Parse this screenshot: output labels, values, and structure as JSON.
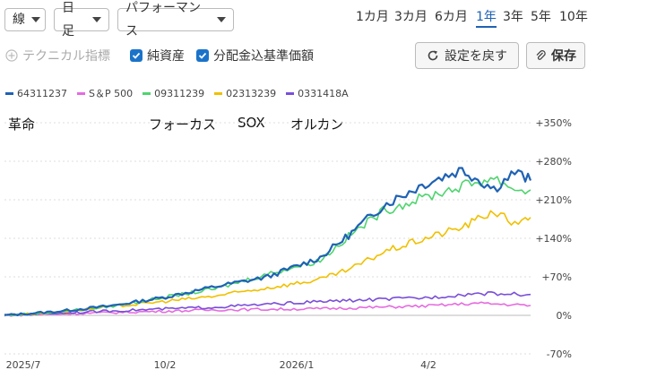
{
  "toolbar": {
    "chart_type": "線",
    "interval": "日足",
    "mode": "パフォーマンス",
    "periods": [
      "1カ月",
      "3カ月",
      "6カ月",
      "1年",
      "3年",
      "5年",
      "10年"
    ],
    "active_period": "1年",
    "technical_label": "テクニカル指標",
    "check_nav": "純資産",
    "check_dividend": "分配金込基準価額",
    "reset_label": "設定を戻す",
    "save_label": "保存"
  },
  "annotations": [
    "革命",
    "フォーカス",
    "SOX",
    "オルカン"
  ],
  "colors": {
    "accent": "#1f62b4"
  },
  "chart_data": {
    "type": "line",
    "x_ticks": [
      "2025/7",
      "10/2",
      "2026/1",
      "4/2"
    ],
    "y_ticks": [
      "+350%",
      "+280%",
      "+210%",
      "+140%",
      "+70%",
      "0%",
      "-70%"
    ],
    "ylim": [
      -70,
      350
    ],
    "grid": true,
    "legend_position": "top-left",
    "series": [
      {
        "name": "64311237",
        "color": "#1f62b4",
        "x": [
          0,
          10,
          20,
          30,
          40,
          50,
          60,
          66,
          72,
          80,
          87,
          93,
          97,
          99,
          100
        ],
        "values": [
          0,
          7,
          17,
          32,
          52,
          70,
          105,
          150,
          200,
          240,
          265,
          230,
          260,
          250,
          245
        ]
      },
      {
        "name": "S＆P 500",
        "color": "#e56be0",
        "x": [
          0,
          20,
          40,
          60,
          80,
          90,
          100
        ],
        "values": [
          0,
          5,
          10,
          12,
          17,
          22,
          18
        ]
      },
      {
        "name": "09311239",
        "color": "#4fd46f",
        "x": [
          0,
          10,
          20,
          30,
          40,
          50,
          60,
          66,
          72,
          80,
          87,
          93,
          97,
          99,
          100
        ],
        "values": [
          0,
          6,
          16,
          32,
          48,
          75,
          100,
          148,
          190,
          215,
          235,
          250,
          230,
          225,
          228
        ]
      },
      {
        "name": "02313239",
        "color": "#f0c000",
        "x": [
          0,
          10,
          20,
          30,
          40,
          50,
          60,
          66,
          72,
          80,
          87,
          93,
          97,
          99,
          100
        ],
        "values": [
          0,
          6,
          15,
          25,
          35,
          50,
          65,
          85,
          115,
          140,
          160,
          190,
          165,
          180,
          178
        ]
      },
      {
        "name": "0331418A",
        "color": "#7a4fd8",
        "x": [
          0,
          20,
          40,
          60,
          80,
          90,
          100
        ],
        "values": [
          0,
          8,
          15,
          25,
          32,
          40,
          38
        ]
      }
    ]
  }
}
